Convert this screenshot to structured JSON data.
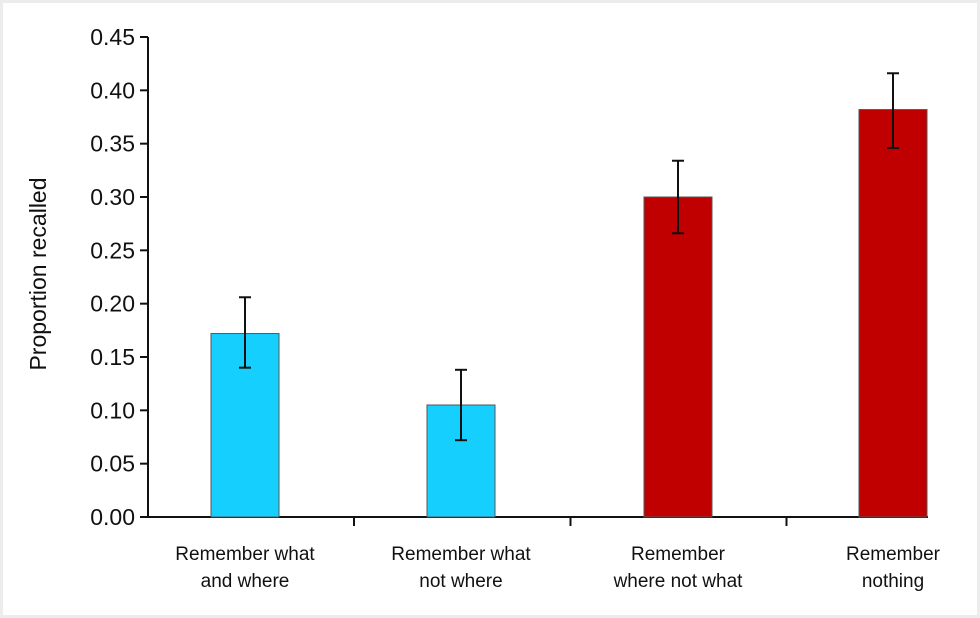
{
  "chart_data": {
    "type": "bar",
    "title": "",
    "xlabel": "",
    "ylabel": "Proportion recalled",
    "ylim": [
      0,
      0.45
    ],
    "yticks": [
      "0.00",
      "0.05",
      "0.10",
      "0.15",
      "0.20",
      "0.25",
      "0.30",
      "0.35",
      "0.40",
      "0.45"
    ],
    "grid": false,
    "categories": [
      [
        "Remember what",
        "and where"
      ],
      [
        "Remember what",
        "not where"
      ],
      [
        "Remember",
        "where not what"
      ],
      [
        "Remember",
        "nothing"
      ]
    ],
    "values": [
      0.172,
      0.105,
      0.3,
      0.382
    ],
    "error_low": [
      0.14,
      0.072,
      0.266,
      0.346
    ],
    "error_high": [
      0.206,
      0.138,
      0.334,
      0.416
    ],
    "colors": [
      "#15cfff",
      "#15cfff",
      "#c00000",
      "#c00000"
    ]
  }
}
